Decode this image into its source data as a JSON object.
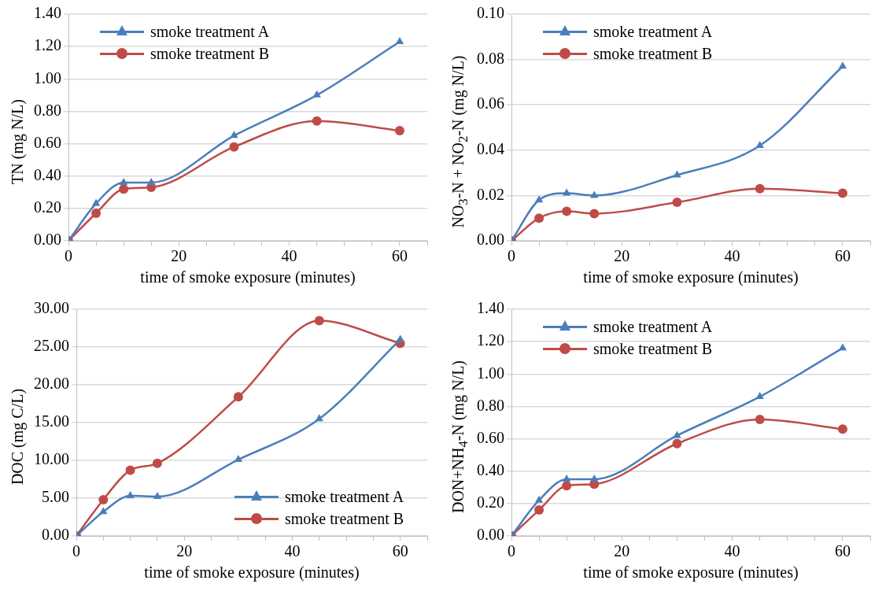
{
  "chart_data": [
    {
      "type": "line",
      "ylabel": "TN (mg N/L)",
      "xlabel": "time of smoke exposure (minutes)",
      "x": [
        0,
        5,
        10,
        15,
        30,
        45,
        60
      ],
      "xlim": [
        0,
        65
      ],
      "xticks": [
        0,
        {
          "value": 5,
          "label": null
        },
        {
          "value": 10,
          "label": null
        },
        {
          "value": 15,
          "label": null
        },
        20,
        {
          "value": 25,
          "label": null
        },
        {
          "value": 30,
          "label": null
        },
        {
          "value": 35,
          "label": null
        },
        40,
        {
          "value": 45,
          "label": null
        },
        {
          "value": 50,
          "label": null
        },
        {
          "value": 55,
          "label": null
        },
        60,
        {
          "value": 65,
          "label": null
        }
      ],
      "ylim": [
        0,
        1.4
      ],
      "yticks": [
        {
          "value": 0,
          "label": "0.00"
        },
        {
          "value": 0.2,
          "label": "0.20"
        },
        {
          "value": 0.4,
          "label": "0.40"
        },
        {
          "value": 0.6,
          "label": "0.60"
        },
        {
          "value": 0.8,
          "label": "0.80"
        },
        {
          "value": 1,
          "label": "1.00"
        },
        {
          "value": 1.2,
          "label": "1.20"
        },
        {
          "value": 1.4,
          "label": "1.40"
        }
      ],
      "grid": "y",
      "legend": "top left",
      "series": [
        {
          "name": "smoke treatment A",
          "color": "#4a7ebb",
          "marker": "triangle",
          "values": [
            0,
            0.23,
            0.36,
            0.36,
            0.65,
            0.9,
            1.23
          ]
        },
        {
          "name": "smoke treatment B",
          "color": "#be4b48",
          "marker": "circle",
          "values": [
            0,
            0.17,
            0.32,
            0.33,
            0.58,
            0.74,
            0.68
          ]
        }
      ]
    },
    {
      "type": "line",
      "ylabel": "NO$_{3}$-N + NO$_{2}$-N (mg N/L)",
      "xlabel": "time of smoke exposure (minutes)",
      "x": [
        0,
        5,
        10,
        15,
        30,
        45,
        60
      ],
      "xlim": [
        0,
        65
      ],
      "xticks": [
        0,
        {
          "value": 5,
          "label": null
        },
        {
          "value": 10,
          "label": null
        },
        {
          "value": 15,
          "label": null
        },
        20,
        {
          "value": 25,
          "label": null
        },
        {
          "value": 30,
          "label": null
        },
        {
          "value": 35,
          "label": null
        },
        40,
        {
          "value": 45,
          "label": null
        },
        {
          "value": 50,
          "label": null
        },
        {
          "value": 55,
          "label": null
        },
        60,
        {
          "value": 65,
          "label": null
        }
      ],
      "ylim": [
        0,
        0.1
      ],
      "yticks": [
        {
          "value": 0,
          "label": "0.00"
        },
        {
          "value": 0.02,
          "label": "0.02"
        },
        {
          "value": 0.04,
          "label": "0.04"
        },
        {
          "value": 0.06,
          "label": "0.06"
        },
        {
          "value": 0.08,
          "label": "0.08"
        },
        {
          "value": 0.1,
          "label": "0.10"
        }
      ],
      "grid": "y",
      "legend": "top left",
      "series": [
        {
          "name": "smoke treatment A",
          "color": "#4a7ebb",
          "marker": "triangle",
          "values": [
            0,
            0.018,
            0.021,
            0.02,
            0.029,
            0.042,
            0.077
          ]
        },
        {
          "name": "smoke treatment B",
          "color": "#be4b48",
          "marker": "circle",
          "values": [
            0,
            0.01,
            0.013,
            0.012,
            0.017,
            0.023,
            0.021
          ]
        }
      ]
    },
    {
      "type": "line",
      "ylabel": "DOC (mg C/L)",
      "xlabel": "time of smoke exposure (minutes)",
      "x": [
        0,
        5,
        10,
        15,
        30,
        45,
        60
      ],
      "xlim": [
        0,
        65
      ],
      "xticks": [
        0,
        {
          "value": 5,
          "label": null
        },
        {
          "value": 10,
          "label": null
        },
        {
          "value": 15,
          "label": null
        },
        20,
        {
          "value": 25,
          "label": null
        },
        {
          "value": 30,
          "label": null
        },
        {
          "value": 35,
          "label": null
        },
        40,
        {
          "value": 45,
          "label": null
        },
        {
          "value": 50,
          "label": null
        },
        {
          "value": 55,
          "label": null
        },
        60,
        {
          "value": 65,
          "label": null
        }
      ],
      "ylim": [
        0,
        30
      ],
      "yticks": [
        {
          "value": 0,
          "label": "0.00"
        },
        {
          "value": 5,
          "label": "5.00"
        },
        {
          "value": 10,
          "label": "10.00"
        },
        {
          "value": 15,
          "label": "15.00"
        },
        {
          "value": 20,
          "label": "20.00"
        },
        {
          "value": 25,
          "label": "25.00"
        },
        {
          "value": 30,
          "label": "30.00"
        }
      ],
      "grid": "y",
      "legend": "bottom right",
      "series": [
        {
          "name": "smoke treatment A",
          "color": "#4a7ebb",
          "marker": "triangle",
          "values": [
            0,
            3.2,
            5.3,
            5.2,
            10.1,
            15.5,
            26.0
          ]
        },
        {
          "name": "smoke treatment B",
          "color": "#be4b48",
          "marker": "circle",
          "values": [
            0,
            4.8,
            8.7,
            9.6,
            18.4,
            28.5,
            25.5
          ]
        }
      ]
    },
    {
      "type": "line",
      "ylabel": "DON+NH$_{4}$-N  (mg N/L)",
      "xlabel": "time of smoke exposure (minutes)",
      "x": [
        0,
        5,
        10,
        15,
        30,
        45,
        60
      ],
      "xlim": [
        0,
        65
      ],
      "xticks": [
        0,
        {
          "value": 5,
          "label": null
        },
        {
          "value": 10,
          "label": null
        },
        {
          "value": 15,
          "label": null
        },
        20,
        {
          "value": 25,
          "label": null
        },
        {
          "value": 30,
          "label": null
        },
        {
          "value": 35,
          "label": null
        },
        40,
        {
          "value": 45,
          "label": null
        },
        {
          "value": 50,
          "label": null
        },
        {
          "value": 55,
          "label": null
        },
        60,
        {
          "value": 65,
          "label": null
        }
      ],
      "ylim": [
        0,
        1.4
      ],
      "yticks": [
        {
          "value": 0,
          "label": "0.00"
        },
        {
          "value": 0.2,
          "label": "0.20"
        },
        {
          "value": 0.4,
          "label": "0.40"
        },
        {
          "value": 0.6,
          "label": "0.60"
        },
        {
          "value": 0.8,
          "label": "0.80"
        },
        {
          "value": 1,
          "label": "1.00"
        },
        {
          "value": 1.2,
          "label": "1.20"
        },
        {
          "value": 1.4,
          "label": "1.40"
        }
      ],
      "grid": "y",
      "legend": "top left",
      "series": [
        {
          "name": "smoke treatment A",
          "color": "#4a7ebb",
          "marker": "triangle",
          "values": [
            0,
            0.22,
            0.35,
            0.35,
            0.62,
            0.86,
            1.16
          ]
        },
        {
          "name": "smoke treatment B",
          "color": "#be4b48",
          "marker": "circle",
          "values": [
            0,
            0.16,
            0.31,
            0.32,
            0.57,
            0.72,
            0.66
          ]
        }
      ]
    }
  ]
}
